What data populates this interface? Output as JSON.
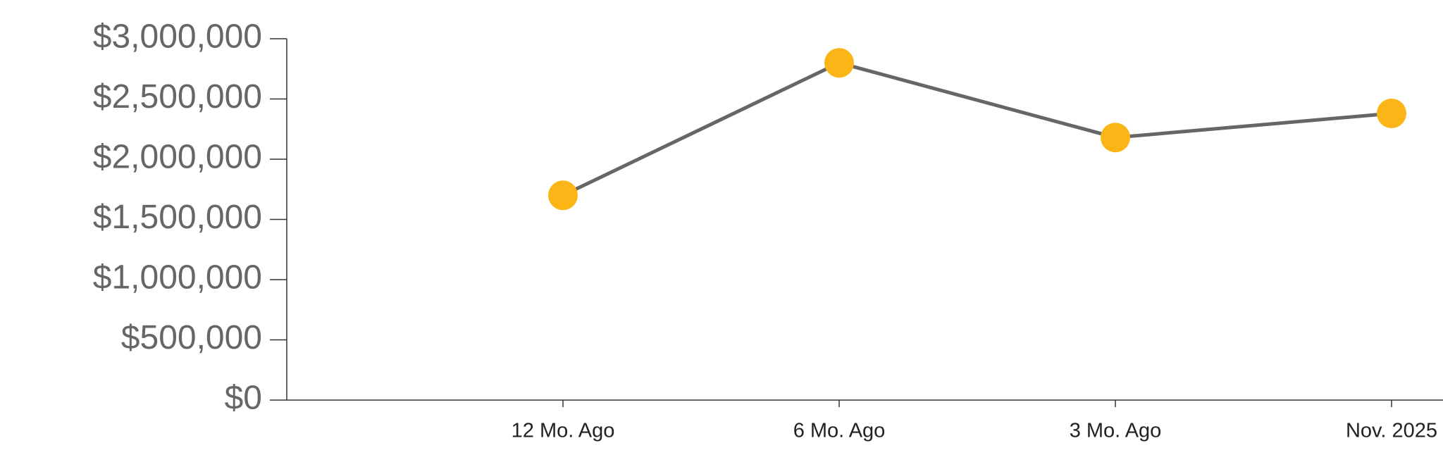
{
  "chart_data": {
    "type": "line",
    "categories": [
      null,
      "12 Mo. Ago",
      "6 Mo. Ago",
      "3 Mo. Ago",
      "Nov. 2025"
    ],
    "series": [
      {
        "color": "#fbb516",
        "line_color": "#666666",
        "values": [
          null,
          1700000,
          2800000,
          2180000,
          2380000
        ]
      }
    ],
    "ylim": [
      0,
      3000000
    ],
    "yticks": [
      {
        "value": 0,
        "label": "$0"
      },
      {
        "value": 500000,
        "label": "$500,000"
      },
      {
        "value": 1000000,
        "label": "$1,000,000"
      },
      {
        "value": 1500000,
        "label": "$1,500,000"
      },
      {
        "value": 2000000,
        "label": "$2,000,000"
      },
      {
        "value": 2500000,
        "label": "$2,500,000"
      },
      {
        "value": 3000000,
        "label": "$3,000,000"
      }
    ],
    "grid": false
  }
}
